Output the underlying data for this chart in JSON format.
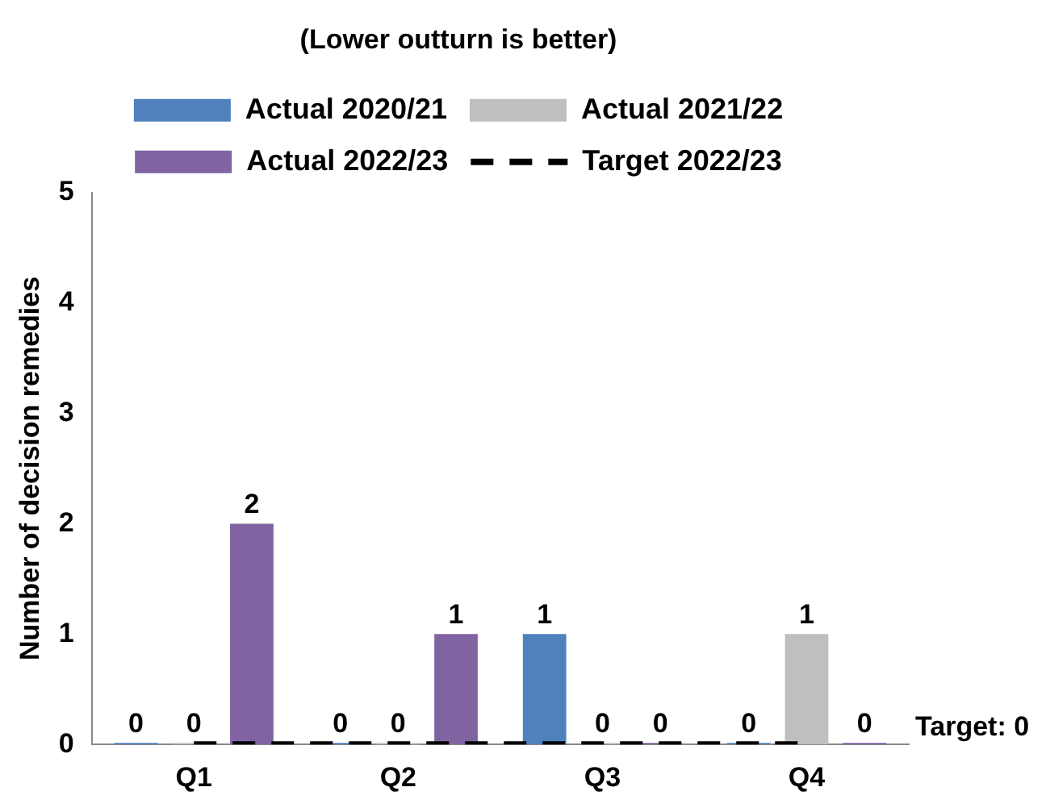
{
  "chart_data": {
    "type": "bar",
    "title": "(Lower outturn is better)",
    "ylabel": "Number of decision remedies",
    "categories": [
      "Q1",
      "Q2",
      "Q3",
      "Q4"
    ],
    "series": [
      {
        "name": "Actual 2020/21",
        "color": "#4f81bd",
        "values": [
          0,
          0,
          1,
          0
        ],
        "value_labels": [
          "0",
          "0",
          "1",
          "0"
        ]
      },
      {
        "name": "Actual 2021/22",
        "color": "#bfbfbf",
        "values": [
          0,
          0,
          0,
          1
        ],
        "value_labels": [
          "0",
          "0",
          "0",
          "1"
        ]
      },
      {
        "name": "Actual 2022/23",
        "color": "#8064a2",
        "values": [
          2,
          1,
          0,
          0
        ],
        "value_labels": [
          "2",
          "1",
          "0",
          "0"
        ]
      },
      {
        "name": "Target 2022/23",
        "type": "line",
        "color": "#000000",
        "line_style": "dashed",
        "marker": "none",
        "values": [
          0,
          0,
          0,
          0
        ]
      }
    ],
    "ylim": [
      0,
      5
    ],
    "yticks": [
      0,
      1,
      2,
      3,
      4,
      5
    ],
    "grid": false,
    "legend": "top",
    "annotations": [
      "Target: 0"
    ]
  }
}
